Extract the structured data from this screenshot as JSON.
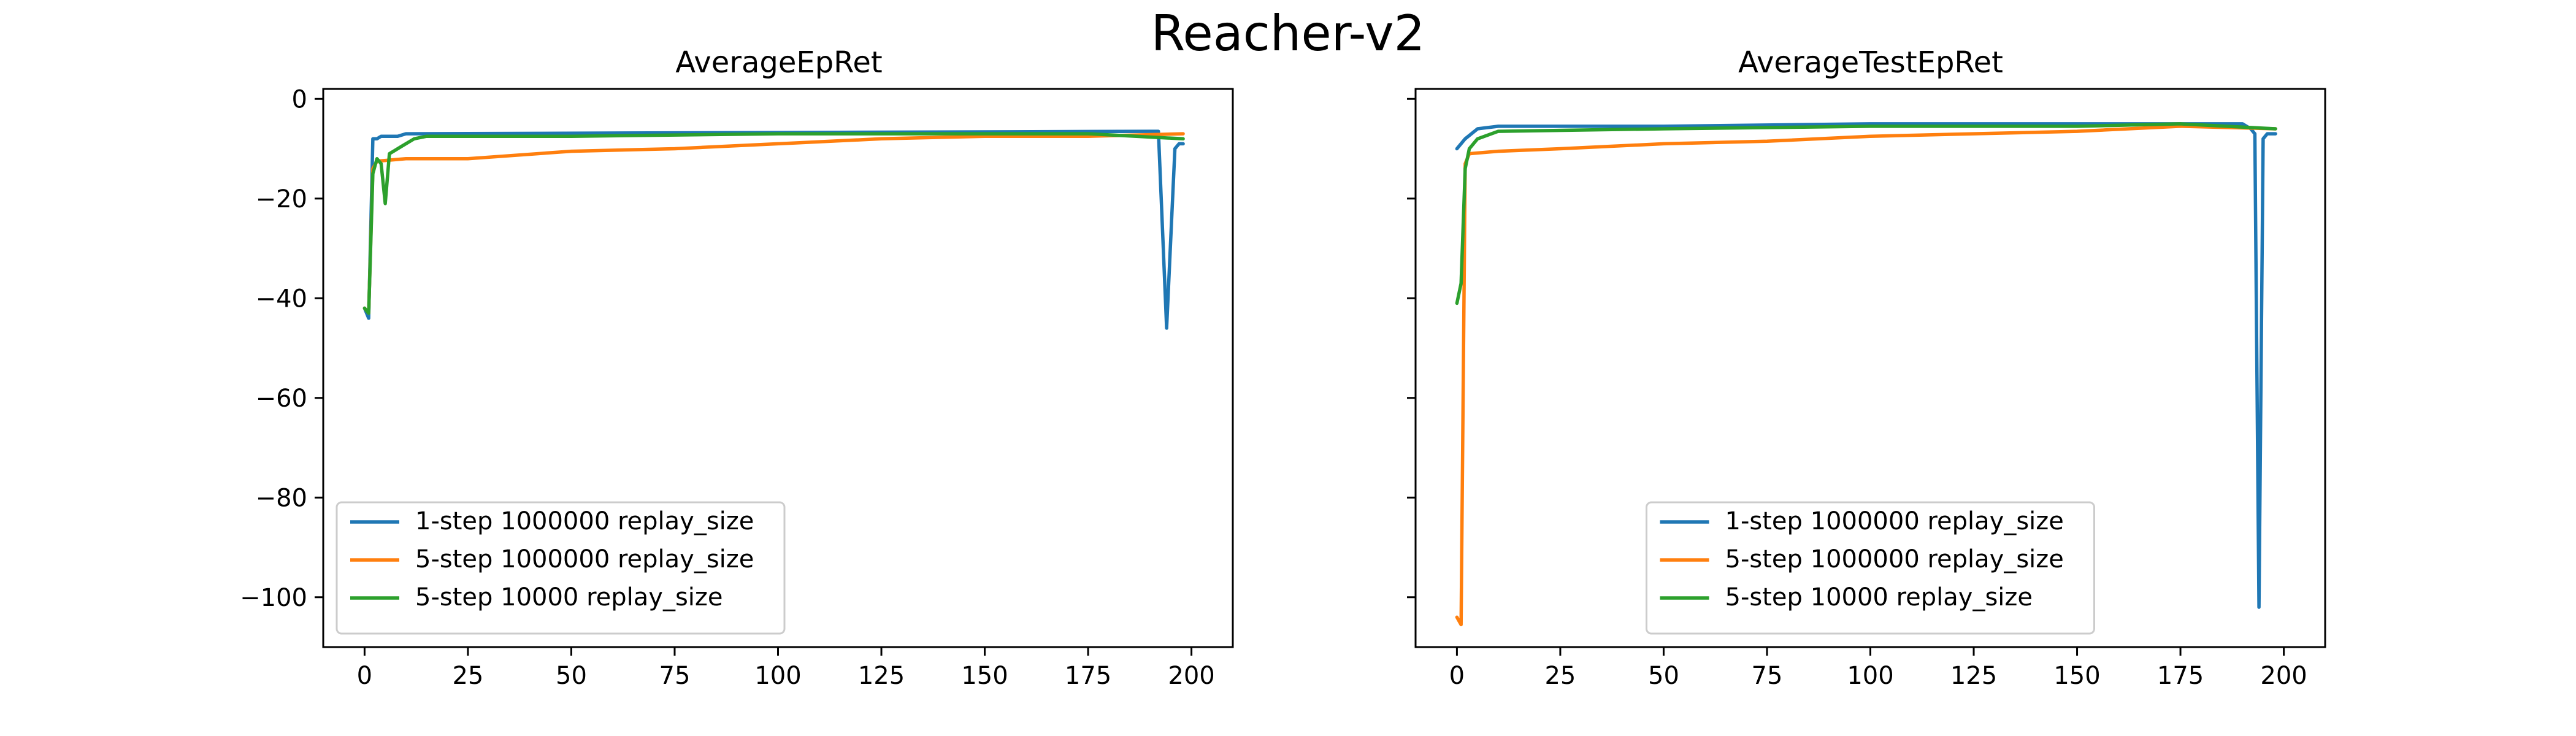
{
  "figure": {
    "suptitle": "Reacher-v2"
  },
  "colors": {
    "1-step 1000000 replay_size": "#1f77b4",
    "5-step 1000000 replay_size": "#ff7f0e",
    "5-step 10000 replay_size": "#2ca02c"
  },
  "chart_data": [
    {
      "type": "line",
      "title": "AverageEpRet",
      "xlabel": "",
      "ylabel": "",
      "xlim": [
        -10,
        210
      ],
      "ylim": [
        -110,
        2
      ],
      "xticks": [
        0,
        25,
        50,
        75,
        100,
        125,
        150,
        175,
        200
      ],
      "yticks": [
        0,
        -20,
        -40,
        -60,
        -80,
        -100
      ],
      "tick_labels_x": [
        "0",
        "25",
        "50",
        "75",
        "100",
        "125",
        "150",
        "175",
        "200"
      ],
      "tick_labels_y": [
        "0",
        "−20",
        "−40",
        "−60",
        "−80",
        "−100"
      ],
      "legend": "lower-left",
      "grid": false,
      "series": [
        {
          "name": "1-step 1000000 replay_size",
          "points": [
            [
              0,
              -42
            ],
            [
              1,
              -44
            ],
            [
              2,
              -8
            ],
            [
              3,
              -8
            ],
            [
              4,
              -7.5
            ],
            [
              8,
              -7.5
            ],
            [
              10,
              -7
            ],
            [
              190,
              -6.5
            ],
            [
              192,
              -6.5
            ],
            [
              194,
              -46
            ],
            [
              196,
              -10
            ],
            [
              197,
              -9
            ],
            [
              198,
              -9
            ]
          ]
        },
        {
          "name": "5-step 1000000 replay_size",
          "points": [
            [
              0,
              -42
            ],
            [
              1,
              -43
            ],
            [
              2,
              -14
            ],
            [
              3,
              -12.5
            ],
            [
              10,
              -12
            ],
            [
              25,
              -12
            ],
            [
              50,
              -10.5
            ],
            [
              75,
              -10
            ],
            [
              100,
              -9
            ],
            [
              125,
              -8
            ],
            [
              150,
              -7.5
            ],
            [
              175,
              -7.5
            ],
            [
              198,
              -7
            ]
          ]
        },
        {
          "name": "5-step 10000 replay_size",
          "points": [
            [
              0,
              -42
            ],
            [
              1,
              -43
            ],
            [
              2,
              -15
            ],
            [
              3,
              -12
            ],
            [
              4,
              -13
            ],
            [
              5,
              -21
            ],
            [
              6,
              -11
            ],
            [
              7,
              -10.5
            ],
            [
              9,
              -9.5
            ],
            [
              10,
              -9
            ],
            [
              12,
              -8
            ],
            [
              15,
              -7.5
            ],
            [
              50,
              -7.5
            ],
            [
              100,
              -7
            ],
            [
              150,
              -7
            ],
            [
              175,
              -7
            ],
            [
              198,
              -8
            ]
          ]
        }
      ]
    },
    {
      "type": "line",
      "title": "AverageTestEpRet",
      "xlabel": "",
      "ylabel": "",
      "xlim": [
        -10,
        210
      ],
      "ylim": [
        -110,
        2
      ],
      "xticks": [
        0,
        25,
        50,
        75,
        100,
        125,
        150,
        175,
        200
      ],
      "yticks": [
        0,
        -20,
        -40,
        -60,
        -80,
        -100
      ],
      "tick_labels_x": [
        "0",
        "25",
        "50",
        "75",
        "100",
        "125",
        "150",
        "175",
        "200"
      ],
      "tick_labels_y": [],
      "legend": "lower-center",
      "grid": false,
      "series": [
        {
          "name": "1-step 1000000 replay_size",
          "points": [
            [
              0,
              -10
            ],
            [
              2,
              -8
            ],
            [
              5,
              -6
            ],
            [
              10,
              -5.5
            ],
            [
              50,
              -5.5
            ],
            [
              100,
              -5
            ],
            [
              150,
              -5
            ],
            [
              190,
              -5
            ],
            [
              192,
              -6
            ],
            [
              193,
              -7
            ],
            [
              194,
              -102
            ],
            [
              195,
              -8
            ],
            [
              196,
              -7
            ],
            [
              198,
              -7
            ]
          ]
        },
        {
          "name": "5-step 1000000 replay_size",
          "points": [
            [
              0,
              -104
            ],
            [
              1,
              -105.5
            ],
            [
              2,
              -13
            ],
            [
              3,
              -11
            ],
            [
              10,
              -10.5
            ],
            [
              25,
              -10
            ],
            [
              50,
              -9
            ],
            [
              75,
              -8.5
            ],
            [
              100,
              -7.5
            ],
            [
              125,
              -7
            ],
            [
              150,
              -6.5
            ],
            [
              175,
              -5.5
            ],
            [
              198,
              -6
            ]
          ]
        },
        {
          "name": "5-step 10000 replay_size",
          "points": [
            [
              0,
              -41
            ],
            [
              1,
              -37
            ],
            [
              2,
              -14
            ],
            [
              3,
              -10
            ],
            [
              5,
              -8
            ],
            [
              10,
              -6.5
            ],
            [
              50,
              -6
            ],
            [
              100,
              -5.5
            ],
            [
              150,
              -5.5
            ],
            [
              175,
              -5
            ],
            [
              198,
              -6
            ]
          ]
        }
      ]
    }
  ]
}
